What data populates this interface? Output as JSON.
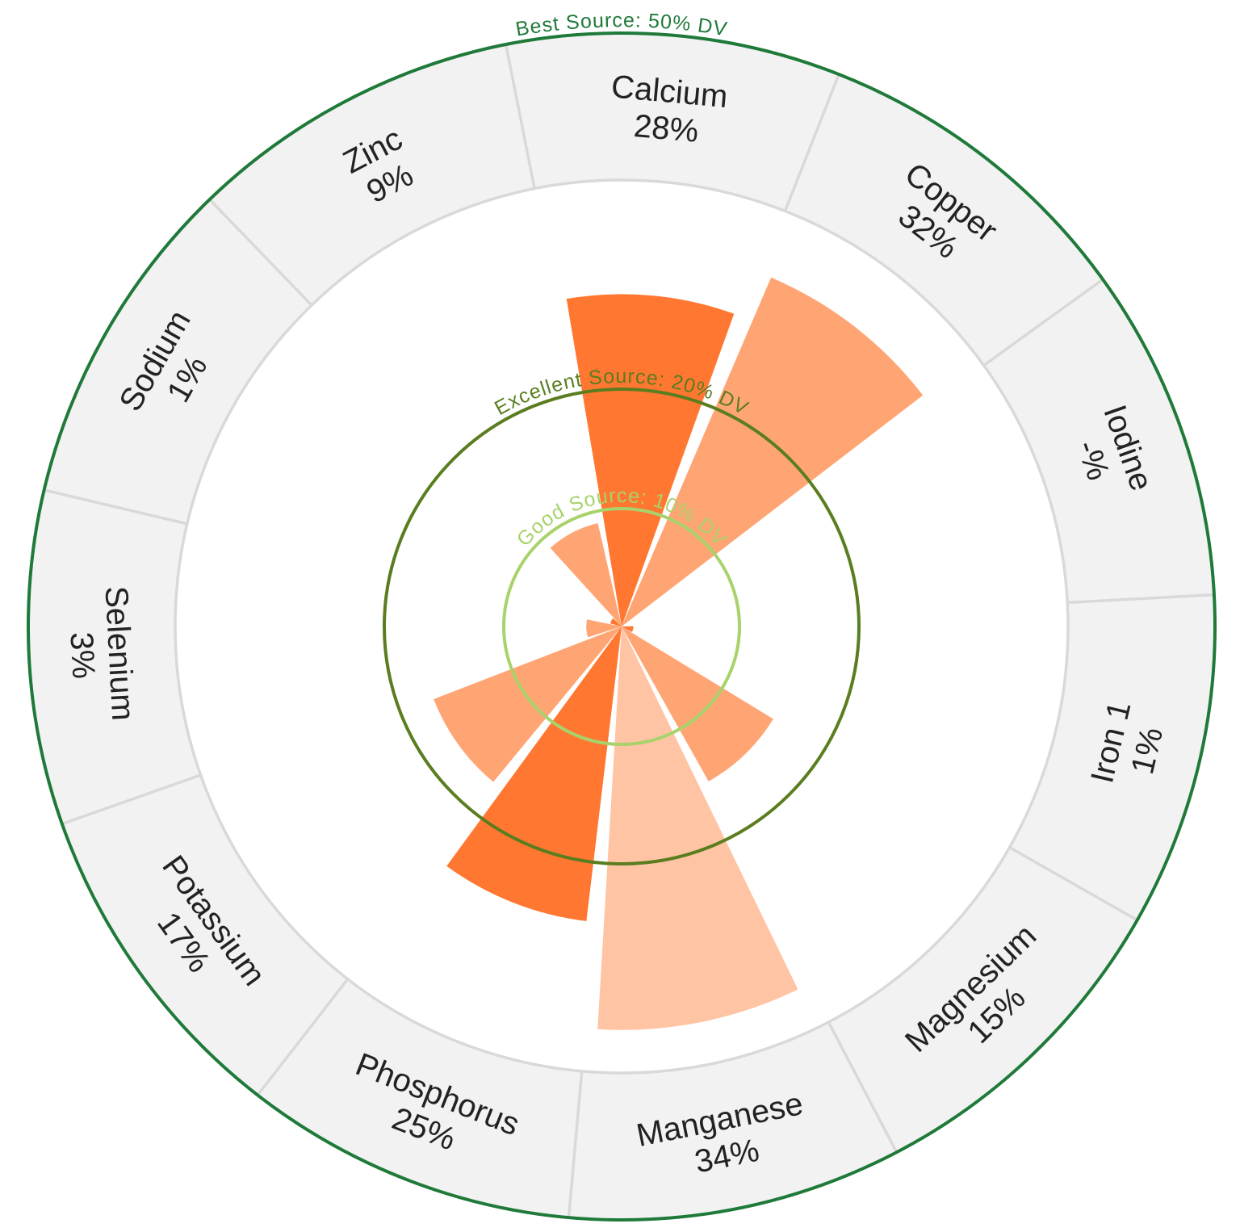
{
  "chart_data": {
    "type": "polar-bar",
    "title": "",
    "unit": "% DV",
    "categories": [
      "Calcium",
      "Copper",
      "Iodine",
      "Iron 1",
      "Magnesium",
      "Manganese",
      "Phosphorus",
      "Potassium",
      "Selenium",
      "Sodium",
      "Zinc"
    ],
    "value_labels": [
      "28%",
      "32%",
      "-%",
      "1%",
      "15%",
      "34%",
      "25%",
      "17%",
      "3%",
      "1%",
      "9%"
    ],
    "values": [
      28,
      32,
      0,
      1,
      15,
      34,
      25,
      17,
      3,
      1,
      9
    ],
    "ring_max": 50,
    "thresholds": [
      {
        "label": "Good Source: 10% DV",
        "value": 10,
        "color": "#a8d26b"
      },
      {
        "label": "Excellent Source: 20% DV",
        "value": 20,
        "color": "#5a7d1f"
      },
      {
        "label": "Best Source: 50% DV",
        "value": 50,
        "color": "#1f7a3a"
      }
    ],
    "colors": {
      "dark": "#ff7730",
      "medium": "#ffa574",
      "light": "#ffc4a3",
      "band": "#f2f2f2",
      "divider": "#d9d9d9"
    },
    "bar_shades": [
      "dark",
      "medium",
      "dark",
      "dark",
      "medium",
      "light",
      "dark",
      "medium",
      "medium",
      "dark",
      "medium"
    ]
  }
}
